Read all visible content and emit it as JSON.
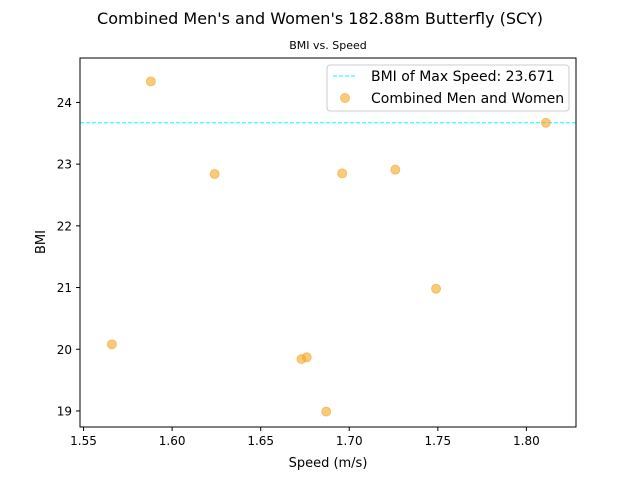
{
  "chart_data": {
    "type": "scatter",
    "title": "Combined Men's and Women's 182.88m Butterfly (SCY)",
    "subtitle": "BMI vs. Speed",
    "xlabel": "Speed (m/s)",
    "ylabel": "BMI",
    "xlim": [
      1.548,
      1.828
    ],
    "ylim": [
      18.74,
      24.72
    ],
    "xticks": [
      1.55,
      1.6,
      1.65,
      1.7,
      1.75,
      1.8
    ],
    "xtick_labels": [
      "1.55",
      "1.60",
      "1.65",
      "1.70",
      "1.75",
      "1.80"
    ],
    "yticks": [
      19,
      20,
      21,
      22,
      23,
      24
    ],
    "ytick_labels": [
      "19",
      "20",
      "21",
      "22",
      "23",
      "24"
    ],
    "grid": false,
    "legend_position": "top-right",
    "reference_line": {
      "label": "BMI of Max Speed: 23.671",
      "y": 23.671,
      "color": "#00ffff",
      "style": "dashed"
    },
    "series": [
      {
        "name": "Combined Men and Women",
        "color": "#f5a623",
        "x": [
          1.566,
          1.588,
          1.624,
          1.673,
          1.676,
          1.687,
          1.696,
          1.726,
          1.749,
          1.811
        ],
        "y": [
          20.08,
          24.34,
          22.84,
          19.84,
          19.87,
          18.99,
          22.85,
          22.91,
          20.98,
          23.67
        ]
      }
    ]
  }
}
